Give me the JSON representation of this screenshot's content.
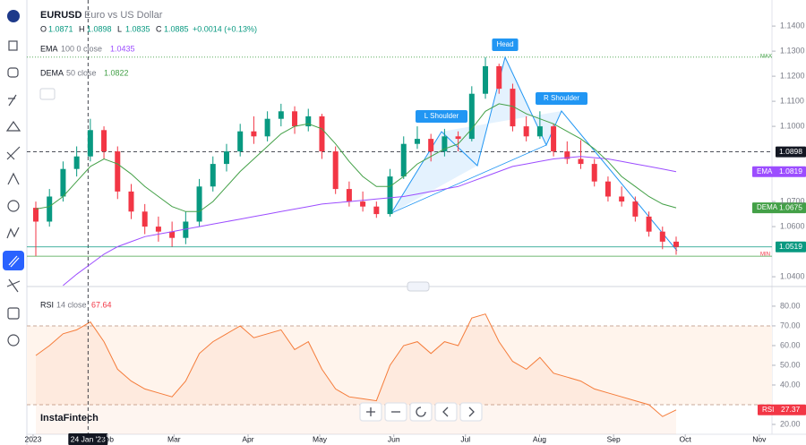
{
  "header": {
    "symbol": "EURUSD",
    "description": "Euro vs US Dollar",
    "ohlc": [
      {
        "label": "O",
        "value": "1.0871"
      },
      {
        "label": "H",
        "value": "1.0898"
      },
      {
        "label": "L",
        "value": "1.0835"
      },
      {
        "label": "C",
        "value": "1.0885"
      }
    ],
    "change": "+0.0014 (+0.13%)",
    "ema_legend": {
      "name": "EMA",
      "params": "100 0 close",
      "value": "1.0435"
    },
    "dema_legend": {
      "name": "DEMA",
      "params": "50 close",
      "value": "1.0822"
    },
    "rsi_legend": {
      "name": "RSI",
      "params": "14 close",
      "value": "67.64"
    },
    "crosshair_date": "24 Jan '23",
    "max_label": "MAX",
    "min_label": "MIN",
    "brand": "InstaFintech"
  },
  "chart_data": {
    "type": "candlestick",
    "ylim": [
      1.0361,
      1.1504
    ],
    "yticks": [
      {
        "value": 1.04,
        "label": "1.0400"
      },
      {
        "value": 1.06,
        "label": "1.0600"
      },
      {
        "value": 1.07,
        "label": "1.0700"
      },
      {
        "value": 1.1,
        "label": "1.1000"
      },
      {
        "value": 1.11,
        "label": "1.1100"
      },
      {
        "value": 1.12,
        "label": "1.1200"
      },
      {
        "value": 1.13,
        "label": "1.1300"
      },
      {
        "value": 1.14,
        "label": "1.1400"
      }
    ],
    "xlim": [
      -2.6,
      309.3
    ],
    "xticks": [
      {
        "value": 0,
        "label": "2023"
      },
      {
        "value": 31,
        "label": "Feb"
      },
      {
        "value": 59,
        "label": "Mar"
      },
      {
        "value": 90,
        "label": "Apr"
      },
      {
        "value": 120,
        "label": "May"
      },
      {
        "value": 151,
        "label": "Jun"
      },
      {
        "value": 181,
        "label": "Jul"
      },
      {
        "value": 212,
        "label": "Aug"
      },
      {
        "value": 243,
        "label": "Sep"
      },
      {
        "value": 273,
        "label": "Oct"
      },
      {
        "value": 304,
        "label": "Nov"
      }
    ],
    "crosshair_x": 23,
    "up_color": "#089981",
    "down_color": "#f23645",
    "candles": [
      [
        1.0675,
        1.07,
        1.0483,
        1.062
      ],
      [
        1.062,
        1.075,
        1.06,
        1.072
      ],
      [
        1.072,
        1.086,
        1.07,
        1.083
      ],
      [
        1.083,
        1.092,
        1.08,
        1.088
      ],
      [
        1.088,
        1.103,
        1.086,
        1.0985
      ],
      [
        1.0985,
        1.1,
        1.087,
        1.09
      ],
      [
        1.09,
        1.092,
        1.071,
        1.074
      ],
      [
        1.074,
        1.077,
        1.063,
        1.066
      ],
      [
        1.066,
        1.069,
        1.057,
        1.06
      ],
      [
        1.06,
        1.064,
        1.054,
        1.058
      ],
      [
        1.058,
        1.062,
        1.052,
        1.0555
      ],
      [
        1.0555,
        1.066,
        1.053,
        1.062
      ],
      [
        1.062,
        1.079,
        1.06,
        1.076
      ],
      [
        1.076,
        1.088,
        1.074,
        1.085
      ],
      [
        1.085,
        1.093,
        1.082,
        1.09
      ],
      [
        1.09,
        1.101,
        1.088,
        1.098
      ],
      [
        1.098,
        1.104,
        1.093,
        1.096
      ],
      [
        1.096,
        1.106,
        1.094,
        1.103
      ],
      [
        1.103,
        1.109,
        1.1,
        1.106
      ],
      [
        1.106,
        1.108,
        1.097,
        1.1
      ],
      [
        1.1,
        1.107,
        1.098,
        1.104
      ],
      [
        1.104,
        1.105,
        1.087,
        1.09
      ],
      [
        1.09,
        1.092,
        1.073,
        1.075
      ],
      [
        1.075,
        1.078,
        1.068,
        1.07
      ],
      [
        1.07,
        1.074,
        1.066,
        1.068
      ],
      [
        1.068,
        1.07,
        1.0635,
        1.065
      ],
      [
        1.065,
        1.083,
        1.064,
        1.08
      ],
      [
        1.08,
        1.096,
        1.079,
        1.093
      ],
      [
        1.093,
        1.1,
        1.091,
        1.095
      ],
      [
        1.095,
        1.097,
        1.086,
        1.09
      ],
      [
        1.09,
        1.099,
        1.088,
        1.096
      ],
      [
        1.096,
        1.098,
        1.09,
        1.095
      ],
      [
        1.095,
        1.116,
        1.094,
        1.113
      ],
      [
        1.113,
        1.1276,
        1.111,
        1.124
      ],
      [
        1.124,
        1.125,
        1.113,
        1.115
      ],
      [
        1.115,
        1.117,
        1.098,
        1.1
      ],
      [
        1.1,
        1.104,
        1.094,
        1.096
      ],
      [
        1.096,
        1.106,
        1.095,
        1.1
      ],
      [
        1.1,
        1.101,
        1.088,
        1.09
      ],
      [
        1.09,
        1.094,
        1.085,
        1.087
      ],
      [
        1.087,
        1.0945,
        1.083,
        1.085
      ],
      [
        1.085,
        1.087,
        1.076,
        1.078
      ],
      [
        1.078,
        1.08,
        1.07,
        1.072
      ],
      [
        1.072,
        1.076,
        1.068,
        1.07
      ],
      [
        1.07,
        1.072,
        1.062,
        1.064
      ],
      [
        1.064,
        1.066,
        1.056,
        1.058
      ],
      [
        1.058,
        1.06,
        1.051,
        1.054
      ],
      [
        1.054,
        1.056,
        1.0488,
        1.0519
      ]
    ],
    "series": [
      {
        "name": "EMA",
        "color": "#9c4dff",
        "values": [
          null,
          null,
          1.0365,
          1.041,
          1.045,
          1.049,
          1.052,
          1.054,
          1.056,
          1.057,
          1.058,
          1.059,
          1.06,
          1.061,
          1.062,
          1.063,
          1.064,
          1.065,
          1.066,
          1.067,
          1.068,
          1.069,
          1.0695,
          1.07,
          1.0705,
          1.071,
          1.0715,
          1.072,
          1.073,
          1.074,
          1.075,
          1.076,
          1.078,
          1.08,
          1.082,
          1.084,
          1.085,
          1.086,
          1.087,
          1.0875,
          1.088,
          1.0875,
          1.087,
          1.086,
          1.085,
          1.084,
          1.083,
          1.0819
        ]
      },
      {
        "name": "DEMA",
        "color": "#43a047",
        "values": [
          1.067,
          1.068,
          1.072,
          1.078,
          1.084,
          1.087,
          1.085,
          1.081,
          1.076,
          1.072,
          1.068,
          1.066,
          1.066,
          1.07,
          1.076,
          1.082,
          1.087,
          1.092,
          1.097,
          1.1,
          1.101,
          1.099,
          1.093,
          1.086,
          1.08,
          1.076,
          1.076,
          1.08,
          1.085,
          1.088,
          1.091,
          1.093,
          1.099,
          1.106,
          1.109,
          1.108,
          1.105,
          1.103,
          1.101,
          1.098,
          1.095,
          1.091,
          1.086,
          1.08,
          1.076,
          1.072,
          1.069,
          1.0675
        ]
      }
    ],
    "price_tags": [
      {
        "name": "",
        "value": 1.0898,
        "color": "#131722"
      },
      {
        "name": "EMA",
        "value": 1.0819,
        "color": "#9c4dff"
      },
      {
        "name": "DEMA",
        "value": 1.0675,
        "color": "#43a047"
      },
      {
        "name": "",
        "value": 1.0519,
        "color": "#089981"
      }
    ],
    "max_value": 1.1276,
    "min_value": 1.0482,
    "annotations": [
      "Head",
      "L Shoulder",
      "R Shoulder"
    ],
    "rsi": {
      "color": "#f57c3a",
      "ylim": [
        15,
        87.7
      ],
      "yticks": [
        {
          "value": 20,
          "label": "20.00"
        },
        {
          "value": 40,
          "label": "40.00"
        },
        {
          "value": 50,
          "label": "50.00"
        },
        {
          "value": 60,
          "label": "60.00"
        },
        {
          "value": 70,
          "label": "70.00"
        },
        {
          "value": 80,
          "label": "80.00"
        }
      ],
      "bands": [
        70,
        30
      ],
      "values": [
        55,
        60,
        66,
        68,
        72,
        62,
        48,
        42,
        38,
        36,
        34,
        42,
        56,
        62,
        66,
        70,
        64,
        66,
        68,
        58,
        62,
        48,
        38,
        34,
        33,
        32,
        50,
        60,
        62,
        56,
        62,
        60,
        74,
        76,
        62,
        52,
        48,
        54,
        46,
        44,
        42,
        38,
        36,
        34,
        32,
        30,
        24,
        27.37
      ],
      "tag": {
        "name": "RSI",
        "value": 27.37,
        "color": "#f23645"
      }
    }
  }
}
